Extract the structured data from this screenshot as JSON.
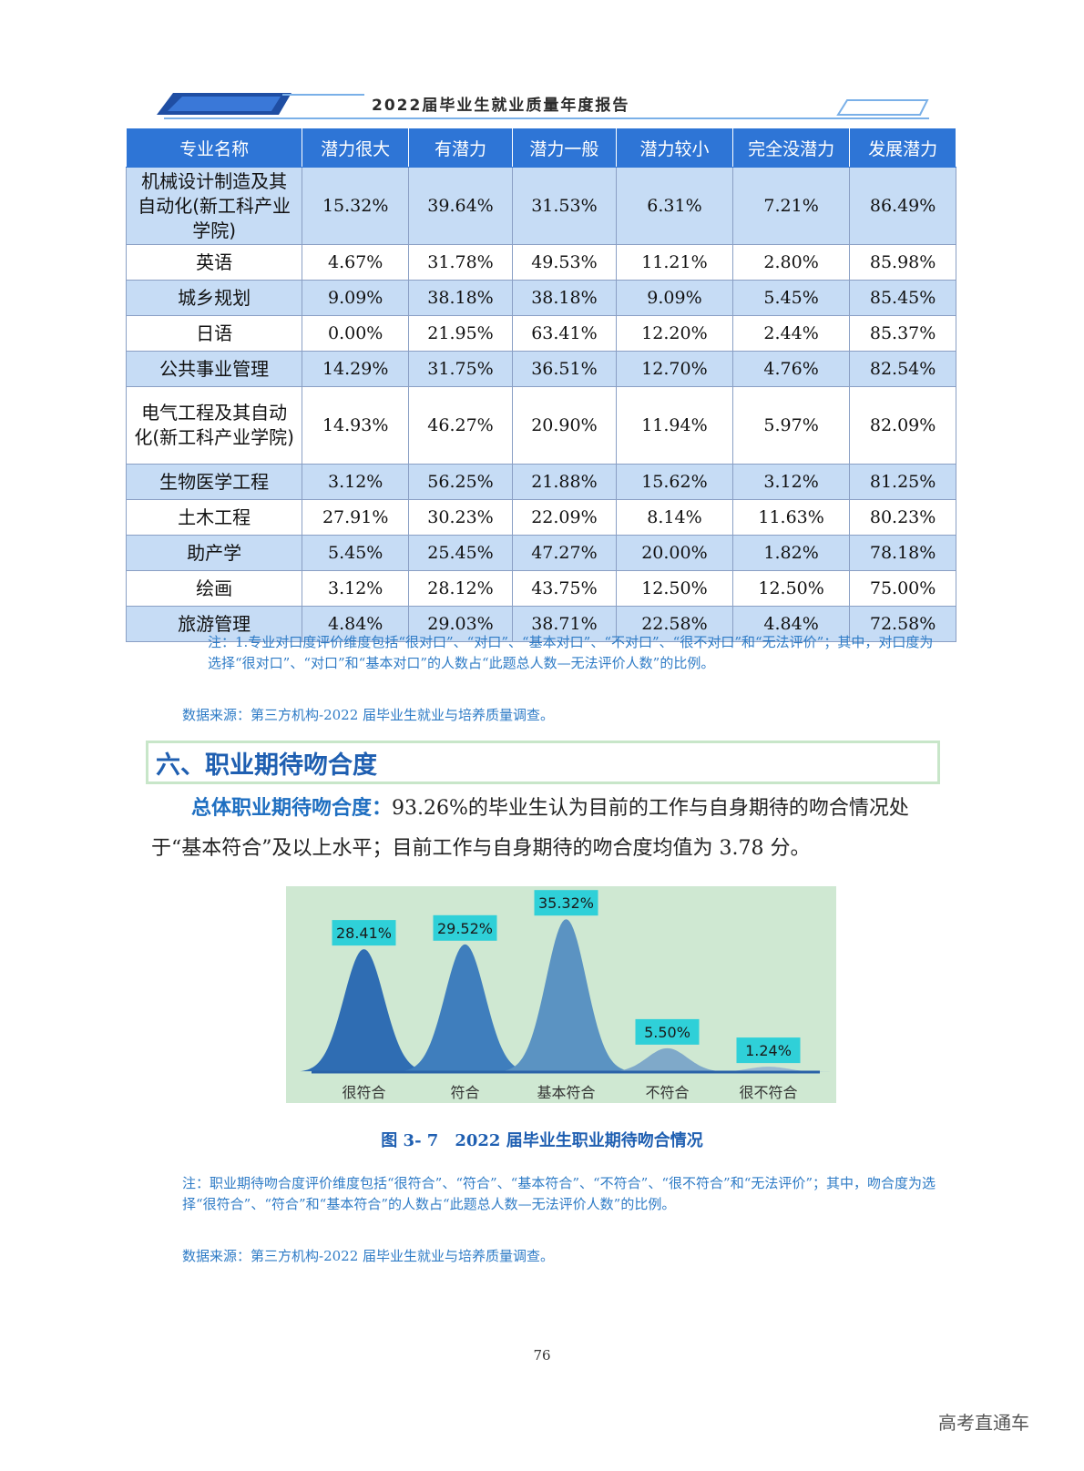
{
  "header": {
    "title": "2022届毕业生就业质量年度报告"
  },
  "table": {
    "columns": [
      "专业名称",
      "潜力很大",
      "有潜力",
      "潜力一般",
      "潜力较小",
      "完全没潜力",
      "发展潜力"
    ],
    "rows": [
      [
        "机械设计制造及其自动化(新工科产业学院)",
        "15.32%",
        "39.64%",
        "31.53%",
        "6.31%",
        "7.21%",
        "86.49%"
      ],
      [
        "英语",
        "4.67%",
        "31.78%",
        "49.53%",
        "11.21%",
        "2.80%",
        "85.98%"
      ],
      [
        "城乡规划",
        "9.09%",
        "38.18%",
        "38.18%",
        "9.09%",
        "5.45%",
        "85.45%"
      ],
      [
        "日语",
        "0.00%",
        "21.95%",
        "63.41%",
        "12.20%",
        "2.44%",
        "85.37%"
      ],
      [
        "公共事业管理",
        "14.29%",
        "31.75%",
        "36.51%",
        "12.70%",
        "4.76%",
        "82.54%"
      ],
      [
        "电气工程及其自动化(新工科产业学院)",
        "14.93%",
        "46.27%",
        "20.90%",
        "11.94%",
        "5.97%",
        "82.09%"
      ],
      [
        "生物医学工程",
        "3.12%",
        "56.25%",
        "21.88%",
        "15.62%",
        "3.12%",
        "81.25%"
      ],
      [
        "土木工程",
        "27.91%",
        "30.23%",
        "22.09%",
        "8.14%",
        "11.63%",
        "80.23%"
      ],
      [
        "助产学",
        "5.45%",
        "25.45%",
        "47.27%",
        "20.00%",
        "1.82%",
        "78.18%"
      ],
      [
        "绘画",
        "3.12%",
        "28.12%",
        "43.75%",
        "12.50%",
        "12.50%",
        "75.00%"
      ],
      [
        "旅游管理",
        "4.84%",
        "29.03%",
        "38.71%",
        "22.58%",
        "4.84%",
        "72.58%"
      ]
    ]
  },
  "note1": {
    "text": "注：1.专业对口度评价维度包括“很对口”、“对口”、“基本对口”、“不对口”、“很不对口”和“无法评价”；其中，对口度为选择“很对口”、“对口”和“基本对口”的人数占“此题总人数—无法评价人数”的比例。",
    "source": "数据来源：第三方机构-2022 届毕业生就业与培养质量调查。"
  },
  "section": {
    "title": "六、职业期待吻合度"
  },
  "paragraph": {
    "lead": "总体职业期待吻合度：",
    "body": "93.26%的毕业生认为目前的工作与自身期待的吻合情况处于“基本符合”及以上水平；目前工作与自身期待的吻合度均值为 3.78 分。"
  },
  "chart_data": {
    "type": "area",
    "categories": [
      "很符合",
      "符合",
      "基本符合",
      "不符合",
      "很不符合"
    ],
    "values": [
      28.41,
      29.52,
      35.32,
      5.5,
      1.24
    ],
    "labels": [
      "28.41%",
      "29.52%",
      "35.32%",
      "5.50%",
      "1.24%"
    ],
    "colors": [
      "#2f6db3",
      "#3f7ebd",
      "#5b93c2",
      "#7fa9c9",
      "#9bb9d2"
    ],
    "background": "#cfe8d2",
    "label_bg": "#2fd0d8",
    "ylim": [
      0,
      40
    ]
  },
  "figure": {
    "caption": "图 3- 7　2022 届毕业生职业期待吻合情况"
  },
  "note2": {
    "text": "注：职业期待吻合度评价维度包括“很符合”、“符合”、“基本符合”、“不符合”、“很不符合”和“无法评价”；其中，吻合度为选择“很符合”、“符合”和“基本符合”的人数占“此题总人数—无法评价人数”的比例。",
    "source": "数据来源：第三方机构-2022 届毕业生就业与培养质量调查。"
  },
  "page_number": "76",
  "watermark": "高考直通车"
}
